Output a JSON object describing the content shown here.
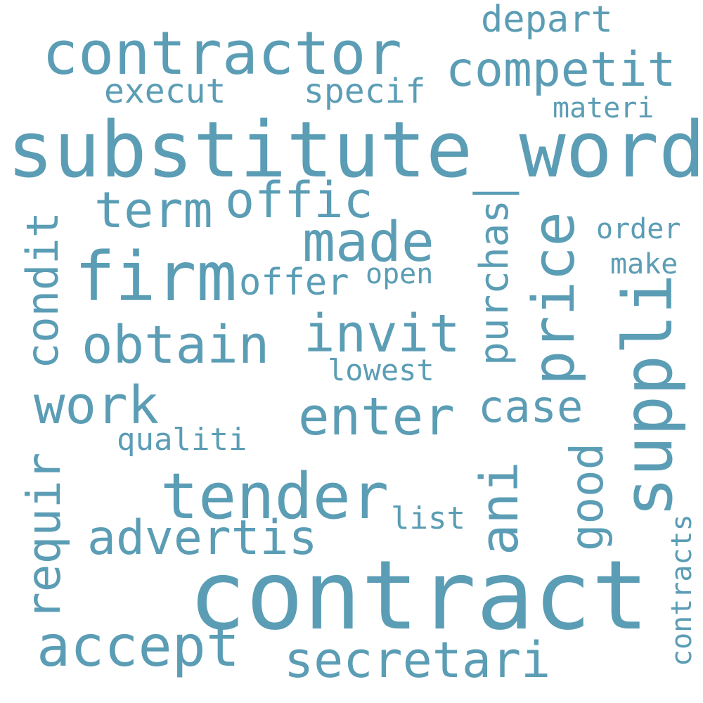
{
  "words": {
    "contract": "contract",
    "substitute_word": "substitute_word",
    "contractor": "contractor",
    "tender": "tender",
    "firm": "firm",
    "suppli": "suppli",
    "price": "price",
    "made": "made",
    "invit": "invit",
    "obtain": "obtain",
    "enter": "enter",
    "work": "work",
    "accept": "accept",
    "secretari": "secretari",
    "advertis": "advertis",
    "competit": "competit",
    "condit": "condit",
    "requir": "requir",
    "offic": "offic",
    "term": "term",
    "ani": "ani",
    "good": "good",
    "case": "case",
    "purchas": "purchas",
    "offer": "offer",
    "depart": "depart",
    "execut": "execut",
    "specif": "specif",
    "materi": "materi",
    "order": "order",
    "make": "make",
    "open": "open",
    "lowest": "lowest",
    "qualiti": "qualiti",
    "list": "list",
    "contracts": "contracts"
  },
  "colors": {
    "word": "#5b9db5",
    "background": "#ffffff"
  }
}
